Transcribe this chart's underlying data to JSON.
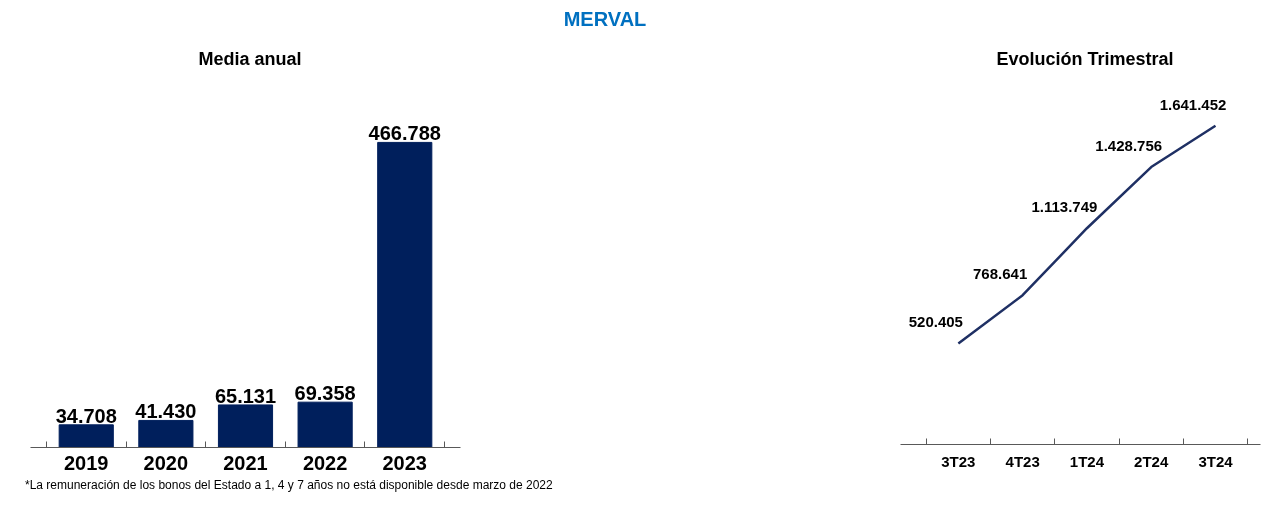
{
  "chart_data": [
    {
      "type": "other",
      "title": "MERVAL"
    },
    {
      "type": "bar",
      "title": "Media anual",
      "categories": [
        "2019",
        "2020",
        "2021",
        "2022",
        "2023"
      ],
      "values": [
        34708,
        41430,
        65131,
        69358,
        466788
      ],
      "value_labels": [
        "34.708",
        "41.430",
        "65.131",
        "69.358",
        "466.788"
      ],
      "color": "#001f5c",
      "grid": false,
      "annotations": [
        "*La remuneración de los bonos del Estado a 1, 4 y 7 años no está disponible desde marzo de 2022"
      ]
    },
    {
      "type": "line",
      "title": "Evolución Trimestral",
      "categories": [
        "3T23",
        "4T23",
        "1T24",
        "2T24",
        "3T24"
      ],
      "values": [
        520405,
        768641,
        1113749,
        1428756,
        1641452
      ],
      "value_labels": [
        "520.405",
        "768.641",
        "1.113.749",
        "1.428.756",
        "1.641.452"
      ],
      "color": "#1f3064",
      "marker": "none",
      "line_style": "solid",
      "grid": false
    }
  ]
}
